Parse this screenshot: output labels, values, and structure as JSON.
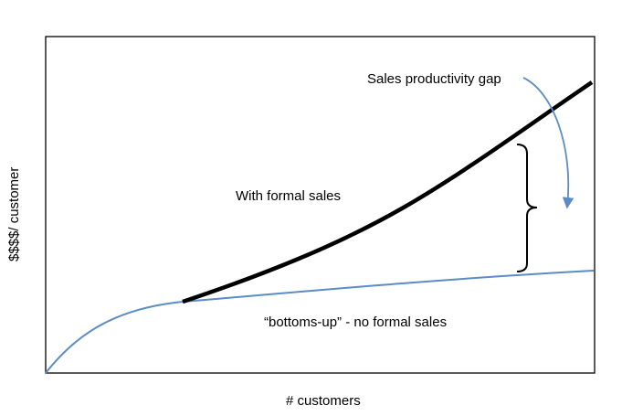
{
  "diagram": {
    "y_axis_label": "$$$$/ customer",
    "x_axis_label": "# customers",
    "curve_labels": {
      "formal": "With formal sales",
      "bottoms_up": "“bottoms-up” - no formal sales"
    },
    "annotation": "Sales productivity gap",
    "colors": {
      "frame": "#000000",
      "formal_curve": "#000000",
      "bottoms_up_curve": "#5b8cc5",
      "arrow": "#5b8cc5",
      "bracket": "#000000"
    }
  }
}
